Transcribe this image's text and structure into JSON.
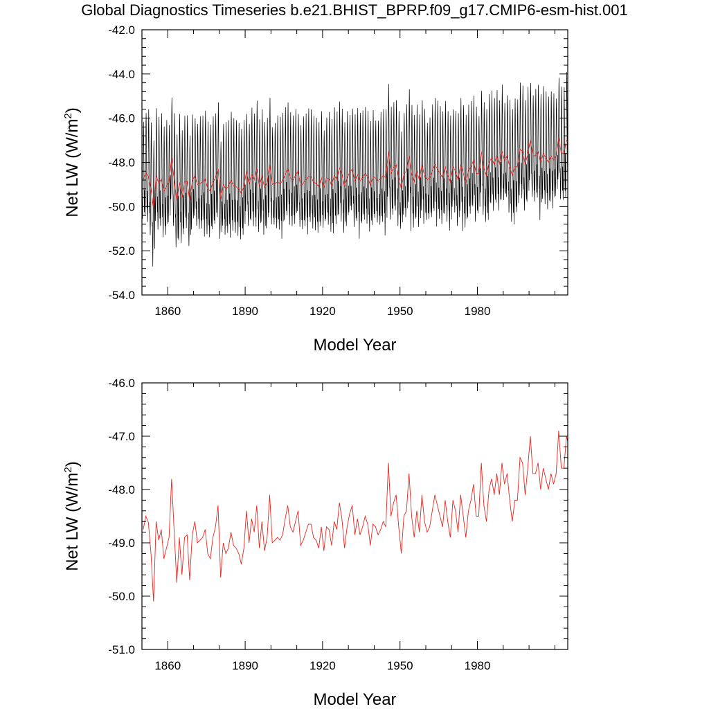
{
  "title": "Global Diagnostics Timeseries b.e21.BHIST_BPRP.f09_g17.CMIP6-esm-hist.001",
  "colors": {
    "monthly": "#000000",
    "annual": "#e8251f",
    "axis": "#000000"
  },
  "chart_data": [
    {
      "type": "line",
      "xlabel": "Model Year",
      "ylabel": "Net LW (W/m2)",
      "ylabel_parts": {
        "main": "Net LW (W/m",
        "sup": "2",
        "close": ")"
      },
      "xlim": [
        1850,
        2015
      ],
      "ylim": [
        -54.0,
        -42.0
      ],
      "x_ticks": [
        "1860",
        "1890",
        "1920",
        "1950",
        "1980"
      ],
      "y_ticks": [
        "-42.0",
        "-44.0",
        "-46.0",
        "-48.0",
        "-50.0",
        "-52.0",
        "-54.0"
      ],
      "series": [
        {
          "style": "monthly",
          "resolution": "monthly",
          "x_start": 1850,
          "values_by_year": [
            [
              -48.9,
              -49.5,
              -50.1,
              -49.6,
              -48.6,
              -47.5,
              -46.2,
              -45.7,
              -46.5,
              -47.9,
              -49.2,
              -49.8
            ],
            [
              -49.1,
              -49.7,
              -50.2,
              -49.8,
              -48.8,
              -47.6,
              -46.1,
              -45.6,
              -46.4,
              -47.8,
              -49.0,
              -49.9
            ],
            [
              -49.0,
              -49.6,
              -50.4,
              -50.0,
              -48.7,
              -47.5,
              -46.0,
              -45.3,
              -46.3,
              -47.8,
              -49.3,
              -50.0
            ],
            [
              -49.4,
              -50.2,
              -50.9,
              -50.3,
              -49.2,
              -47.9,
              -46.5,
              -45.8,
              -46.9,
              -48.3,
              -49.8,
              -50.5
            ],
            [
              -50.0,
              -50.8,
              -52.0,
              -51.0,
              -49.7,
              -48.4,
              -47.0,
              -46.3,
              -47.2,
              -48.8,
              -50.3,
              -51.2
            ],
            [
              -49.3,
              -50.1,
              -50.7,
              -50.1,
              -49.1,
              -47.8,
              -46.3,
              -45.6,
              -46.7,
              -48.2,
              -49.6,
              -50.3
            ],
            [
              -49.0,
              -49.9,
              -50.5,
              -49.9,
              -48.8,
              -47.5,
              -46.1,
              -45.4,
              -46.5,
              -47.9,
              -49.4,
              -50.0
            ],
            [
              -49.4,
              -50.3,
              -51.0,
              -50.4,
              -49.3,
              -47.9,
              -46.6,
              -45.9,
              -46.9,
              -48.4,
              -49.8,
              -50.6
            ],
            [
              -49.1,
              -50.0,
              -50.6,
              -50.0,
              -48.9,
              -47.6,
              -46.2,
              -45.6,
              -46.6,
              -48.0,
              -49.5,
              -50.1
            ],
            [
              -49.2,
              -50.2,
              -50.9,
              -50.2,
              -49.1,
              -47.8,
              -46.4,
              -45.7,
              -46.8,
              -48.2,
              -49.7,
              -50.4
            ]
          ]
        },
        {
          "style": "annual",
          "resolution": "annual",
          "x_start": 1850,
          "values": [
            -48.75,
            -48.5,
            -48.62,
            -49.2,
            -50.1,
            -48.6,
            -48.95,
            -48.75,
            -49.3,
            -49.1,
            -48.9,
            -47.8,
            -48.8,
            -49.75,
            -48.9,
            -49.6,
            -48.9,
            -48.85,
            -49.7,
            -48.85,
            -48.6,
            -49.0,
            -48.95,
            -48.9,
            -48.75,
            -49.2,
            -49.3,
            -48.9,
            -48.7,
            -48.3,
            -49.65,
            -49.0,
            -49.2,
            -49.1,
            -48.8,
            -49.05,
            -49.1,
            -49.2,
            -49.4,
            -49.1,
            -48.4,
            -49.0,
            -48.55,
            -48.8,
            -48.3,
            -49.1,
            -48.6,
            -49.15,
            -48.9,
            -48.1,
            -49.0,
            -48.95,
            -48.9,
            -48.95,
            -48.85,
            -48.55,
            -48.3,
            -48.7,
            -48.8,
            -48.6,
            -48.4,
            -49.05,
            -48.95,
            -48.8,
            -48.65,
            -48.65,
            -48.9,
            -48.95,
            -49.1,
            -48.7,
            -49.15,
            -48.7,
            -48.75,
            -49.05,
            -48.6,
            -48.75,
            -48.25,
            -48.55,
            -49.1,
            -48.7,
            -48.45,
            -48.3,
            -48.85,
            -48.55,
            -48.85,
            -48.7,
            -48.5,
            -48.65,
            -49.05,
            -48.65,
            -48.7,
            -48.85,
            -48.75,
            -48.6,
            -48.7,
            -47.5,
            -48.5,
            -48.25,
            -48.1,
            -48.7,
            -49.2,
            -48.5,
            -48.4,
            -47.7,
            -48.5,
            -48.9,
            -48.4,
            -48.8,
            -48.1,
            -48.6,
            -48.8,
            -48.7,
            -48.4,
            -48.1,
            -48.3,
            -48.5,
            -48.7,
            -48.2,
            -48.6,
            -48.9,
            -48.2,
            -48.4,
            -48.8,
            -48.1,
            -48.5,
            -48.9,
            -48.4,
            -48.2,
            -47.9,
            -48.5,
            -48.5,
            -47.5,
            -48.3,
            -48.6,
            -48.0,
            -47.8,
            -48.1,
            -47.7,
            -48.1,
            -47.5,
            -47.9,
            -47.7,
            -48.2,
            -48.6,
            -48.2,
            -48.2,
            -47.4,
            -47.5,
            -48.1,
            -47.6,
            -47.0,
            -47.7,
            -47.7,
            -47.5,
            -48.0,
            -47.6,
            -47.8,
            -48.0,
            -47.7,
            -47.9,
            -47.7,
            -46.9,
            -47.6,
            -47.6,
            -47.0,
            -47.2
          ]
        }
      ]
    },
    {
      "type": "line",
      "xlabel": "Model Year",
      "ylabel": "Net LW (W/m2)",
      "ylabel_parts": {
        "main": "Net LW (W/m",
        "sup": "2",
        "close": ")"
      },
      "xlim": [
        1850,
        2015
      ],
      "ylim": [
        -51.0,
        -46.0
      ],
      "x_ticks": [
        "1860",
        "1890",
        "1920",
        "1950",
        "1980"
      ],
      "y_ticks": [
        "-46.0",
        "-47.0",
        "-48.0",
        "-49.0",
        "-50.0",
        "-51.0"
      ],
      "series": [
        {
          "style": "annual",
          "resolution": "annual",
          "x_start": 1850,
          "same_as": "chart_data.0.series.1"
        }
      ]
    }
  ]
}
